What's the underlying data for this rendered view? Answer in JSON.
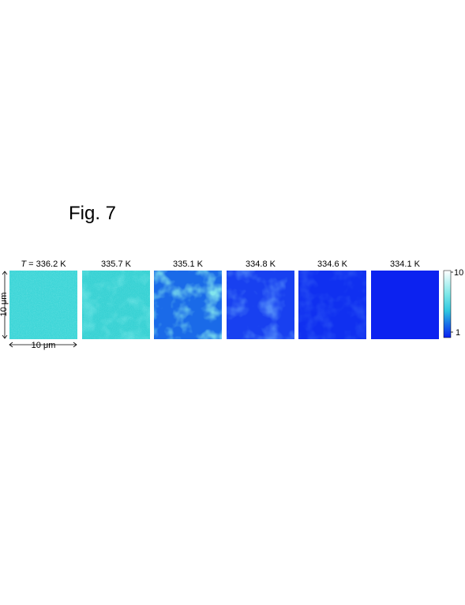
{
  "figure": {
    "title": "Fig. 7",
    "panels": [
      {
        "variable": "T",
        "label": " = 336.2 K"
      },
      {
        "label": "335.7 K"
      },
      {
        "label": "335.1 K"
      },
      {
        "label": "334.8 K"
      },
      {
        "label": "334.6 K"
      },
      {
        "label": "334.1 K"
      }
    ],
    "scale_bar": {
      "vertical": "10 μm",
      "horizontal": "10 μm"
    },
    "colorbar": {
      "ticks": [
        "10",
        "1"
      ]
    }
  }
}
